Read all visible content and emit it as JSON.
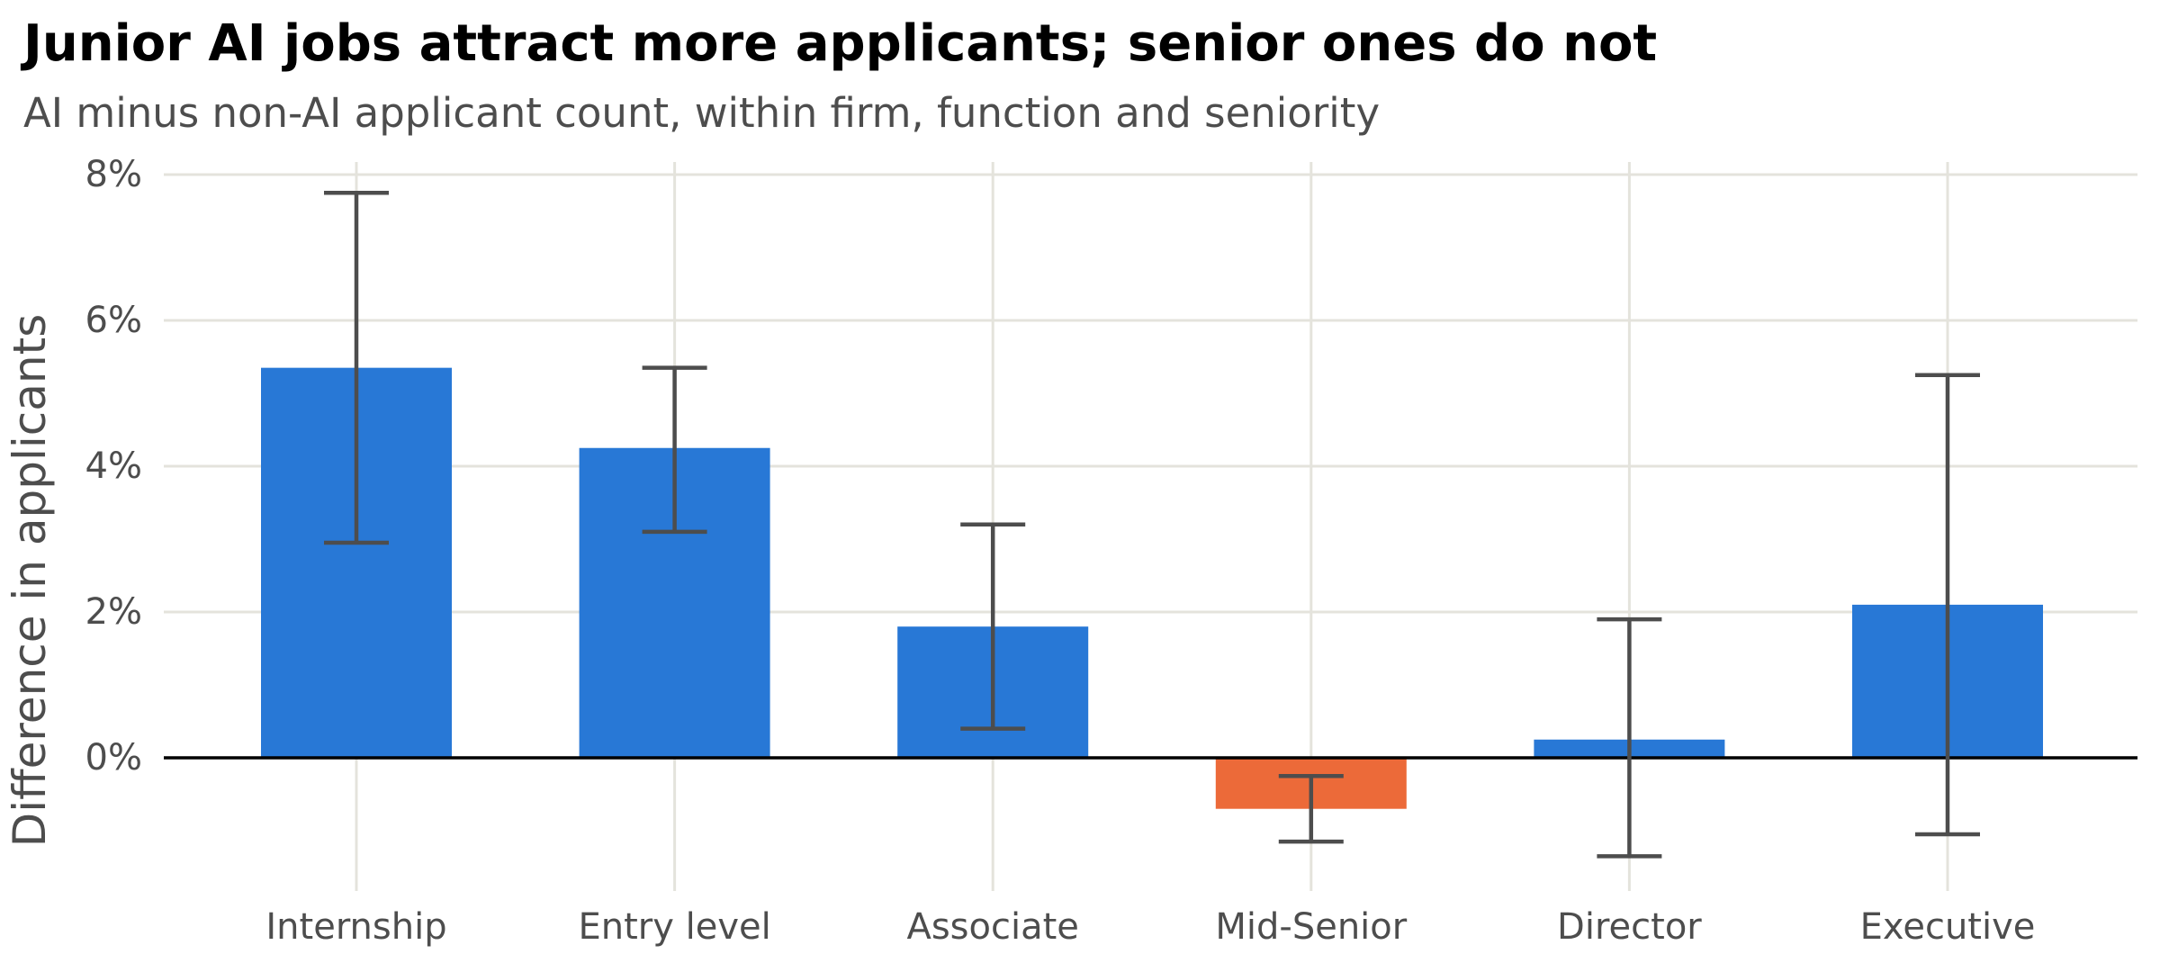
{
  "chart_data": {
    "type": "bar",
    "title": "Junior AI jobs attract more applicants; senior ones do not",
    "subtitle": "AI minus non-AI applicant count, within firm, function and seniority",
    "ylabel": "Difference in applicants",
    "xlabel": "",
    "categories": [
      "Internship",
      "Entry level",
      "Associate",
      "Mid-Senior",
      "Director",
      "Executive"
    ],
    "values": [
      5.35,
      4.25,
      1.8,
      -0.7,
      0.25,
      2.1
    ],
    "error_low": [
      2.95,
      3.1,
      0.4,
      -1.15,
      -1.35,
      -1.05
    ],
    "error_high": [
      7.75,
      5.35,
      3.2,
      -0.25,
      1.9,
      5.25
    ],
    "y_ticks": [
      0,
      2,
      4,
      6,
      8
    ],
    "y_tick_labels": [
      "0%",
      "2%",
      "4%",
      "6%",
      "8%"
    ],
    "ylim": [
      -1.8,
      8.2
    ],
    "grid": true,
    "colors": {
      "positive": "#2878d6",
      "negative": "#ec6a39",
      "error_bar": "#4d4d4d",
      "grid": "#e4e3dc",
      "zero_line": "#000000"
    }
  }
}
